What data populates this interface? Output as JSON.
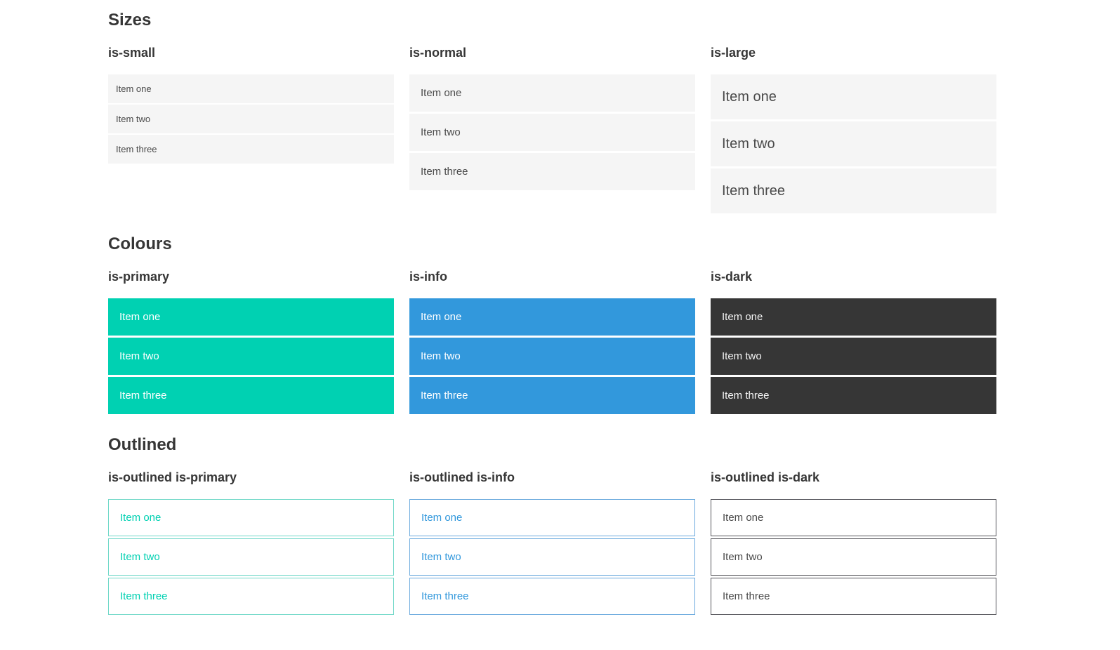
{
  "colors": {
    "primary": "#00d1b2",
    "info": "#3298dc",
    "dark": "#363636",
    "item_bg": "#f5f5f5",
    "item_text": "#4a4a4a",
    "heading_text": "#363636",
    "on_color_text": "#ffffff",
    "primary_outline_border": "#70d8c8",
    "info_outline_border": "#69a9dd",
    "dark_outline_border": "#54545a"
  },
  "sections": [
    {
      "title": "Sizes",
      "groups": [
        {
          "heading": "is-small",
          "items": [
            "Item one",
            "Item two",
            "Item three"
          ]
        },
        {
          "heading": "is-normal",
          "items": [
            "Item one",
            "Item two",
            "Item three"
          ]
        },
        {
          "heading": "is-large",
          "items": [
            "Item one",
            "Item two",
            "Item three"
          ]
        }
      ]
    },
    {
      "title": "Colours",
      "groups": [
        {
          "heading": "is-primary",
          "items": [
            "Item one",
            "Item two",
            "Item three"
          ]
        },
        {
          "heading": "is-info",
          "items": [
            "Item one",
            "Item two",
            "Item three"
          ]
        },
        {
          "heading": "is-dark",
          "items": [
            "Item one",
            "Item two",
            "Item three"
          ]
        }
      ]
    },
    {
      "title": "Outlined",
      "groups": [
        {
          "heading": "is-outlined is-primary",
          "items": [
            "Item one",
            "Item two",
            "Item three"
          ]
        },
        {
          "heading": "is-outlined is-info",
          "items": [
            "Item one",
            "Item two",
            "Item three"
          ]
        },
        {
          "heading": "is-outlined is-dark",
          "items": [
            "Item one",
            "Item two",
            "Item three"
          ]
        }
      ]
    }
  ]
}
